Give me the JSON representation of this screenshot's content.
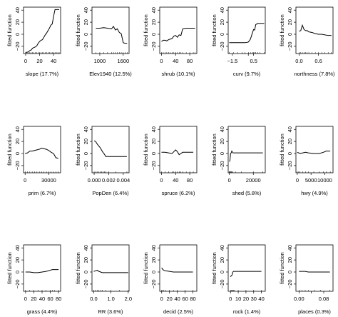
{
  "chart_data": [
    {
      "type": "line",
      "title": "",
      "xlabel": "slope (17.7%)",
      "ylabel": "fitted function",
      "xlim": [
        -3,
        50
      ],
      "ylim": [
        -32,
        45
      ],
      "xticks": [
        0,
        20,
        40
      ],
      "yticks": [
        -20,
        0,
        20,
        40
      ],
      "x": [
        0,
        2,
        4,
        6,
        8,
        10,
        12,
        14,
        16,
        18,
        20,
        22,
        24,
        26,
        28,
        30,
        32,
        34,
        36,
        38,
        40,
        42,
        44,
        46,
        48
      ],
      "y": [
        -30,
        -30,
        -29,
        -27,
        -26,
        -23,
        -22,
        -21,
        -19,
        -15,
        -12,
        -10,
        -9,
        -5,
        -1,
        2,
        6,
        10,
        15,
        17,
        30,
        41,
        41,
        41,
        41
      ]
    },
    {
      "type": "line",
      "title": "",
      "xlabel": "Elev1940 (12.5%)",
      "ylabel": "fitted function",
      "xlim": [
        800,
        1750
      ],
      "ylim": [
        -32,
        45
      ],
      "xticks": [
        1000,
        1600
      ],
      "yticks": [
        -20,
        0,
        20,
        40
      ],
      "x": [
        900,
        1000,
        1100,
        1200,
        1300,
        1350,
        1400,
        1450,
        1500,
        1550,
        1600,
        1650,
        1700
      ],
      "y": [
        10,
        10,
        11,
        10,
        9,
        13,
        7,
        9,
        3,
        1,
        -14,
        -15,
        -15
      ]
    },
    {
      "type": "line",
      "title": "",
      "xlabel": "shrub (10.1%)",
      "ylabel": "fitted function",
      "xlim": [
        -5,
        100
      ],
      "ylim": [
        -32,
        45
      ],
      "xticks": [
        0,
        40,
        80
      ],
      "yticks": [
        -20,
        0,
        20,
        40
      ],
      "x": [
        0,
        5,
        10,
        15,
        20,
        25,
        30,
        35,
        40,
        45,
        50,
        55,
        60,
        70,
        80,
        90,
        95
      ],
      "y": [
        -12,
        -10,
        -10,
        -11,
        -9,
        -8,
        -7,
        -3,
        -2,
        -5,
        -1,
        -2,
        9,
        10,
        10,
        10,
        10
      ]
    },
    {
      "type": "line",
      "title": "",
      "xlabel": "curv (9.7%)",
      "ylabel": "fitted function",
      "xlim": [
        -1.9,
        1.6
      ],
      "ylim": [
        -32,
        45
      ],
      "xticks": [
        -1.5,
        0.5
      ],
      "xticklabels": [
        "-1.5",
        "0.5"
      ],
      "extra_tick": 0,
      "yticks": [
        -20,
        0,
        20,
        40
      ],
      "x": [
        -1.8,
        -1.4,
        -1.0,
        -0.6,
        -0.3,
        0.0,
        0.2,
        0.4,
        0.5,
        0.6,
        0.7,
        0.9,
        1.1,
        1.5
      ],
      "y": [
        -14,
        -14,
        -14,
        -14,
        -14,
        -13,
        -8,
        3,
        8,
        7,
        16,
        18,
        18,
        18
      ]
    },
    {
      "type": "line",
      "title": "",
      "xlabel": "northness (7.8%)",
      "ylabel": "fitted function",
      "xlim": [
        -0.1,
        1.05
      ],
      "ylim": [
        -32,
        45
      ],
      "xticks": [
        0.0,
        0.6
      ],
      "xticklabels": [
        "0.0",
        "0.6"
      ],
      "yticks": [
        -20,
        0,
        20,
        40
      ],
      "x": [
        0.0,
        0.05,
        0.1,
        0.15,
        0.2,
        0.25,
        0.3,
        0.4,
        0.5,
        0.6,
        0.7,
        0.8,
        0.9,
        1.0
      ],
      "y": [
        5,
        6,
        15,
        8,
        6,
        6,
        4,
        3,
        1,
        0,
        0,
        -1,
        -2,
        -2
      ]
    },
    {
      "type": "line",
      "title": "",
      "xlabel": "prim (6.7%)",
      "ylabel": "fitted function",
      "xlim": [
        -2000,
        45000
      ],
      "ylim": [
        -32,
        45
      ],
      "xticks": [
        0,
        30000
      ],
      "yticks": [
        -20,
        0,
        20,
        40
      ],
      "x": [
        0,
        3000,
        6000,
        9000,
        12000,
        15000,
        18000,
        21000,
        24000,
        27000,
        30000,
        33000,
        36000,
        39000,
        42000
      ],
      "y": [
        0,
        1,
        4,
        4,
        5,
        6,
        7,
        9,
        8,
        7,
        5,
        2,
        0,
        -7,
        -8
      ]
    },
    {
      "type": "line",
      "title": "",
      "xlabel": "PopDen (6.4%)",
      "ylabel": "fitted function",
      "xlim": [
        -0.0003,
        0.0048
      ],
      "ylim": [
        -32,
        45
      ],
      "xticks": [
        0.0,
        0.002,
        0.004
      ],
      "xticklabels": [
        "0.000",
        "0.002",
        "0.004"
      ],
      "yticks": [
        -20,
        0,
        20,
        40
      ],
      "x": [
        0.0,
        0.0002,
        0.0004,
        0.0006,
        0.0008,
        0.001,
        0.0012,
        0.0014,
        0.0016,
        0.002,
        0.003,
        0.0045
      ],
      "y": [
        21,
        20,
        16,
        13,
        10,
        6,
        2,
        -1,
        -5,
        -5,
        -5,
        -5
      ]
    },
    {
      "type": "line",
      "title": "",
      "xlabel": "spruce (6.2%)",
      "ylabel": "fitted function",
      "xlim": [
        -5,
        100
      ],
      "ylim": [
        -32,
        45
      ],
      "xticks": [
        0,
        40,
        80
      ],
      "yticks": [
        -20,
        0,
        20,
        40
      ],
      "x": [
        0,
        10,
        20,
        30,
        35,
        40,
        45,
        50,
        55,
        60,
        70,
        80,
        90
      ],
      "y": [
        2,
        2,
        1,
        0,
        3,
        6,
        3,
        -2,
        0,
        2,
        2,
        2,
        2
      ]
    },
    {
      "type": "line",
      "title": "",
      "xlabel": "shed (5.8%)",
      "ylabel": "fitted function",
      "xlim": [
        -1000,
        30000
      ],
      "ylim": [
        -32,
        45
      ],
      "xticks": [
        0,
        20000
      ],
      "yticks": [
        -20,
        0,
        20,
        40
      ],
      "x": [
        0,
        300,
        600,
        1000,
        1500,
        2000,
        3000,
        5000,
        10000,
        20000,
        28000
      ],
      "y": [
        -13,
        -13,
        -9,
        0,
        1,
        4,
        1,
        1,
        1,
        1,
        1
      ]
    },
    {
      "type": "line",
      "title": "",
      "xlabel": "hwy (4.9%)",
      "ylabel": "fitted function",
      "xlim": [
        -500,
        13000
      ],
      "ylim": [
        -32,
        45
      ],
      "xticks": [
        0,
        5000,
        10000
      ],
      "yticks": [
        -20,
        0,
        20,
        40
      ],
      "x": [
        0,
        500,
        1000,
        2000,
        3000,
        4000,
        6000,
        8000,
        9500,
        10500,
        12000
      ],
      "y": [
        2,
        1,
        0,
        1,
        2,
        1,
        0,
        0,
        2,
        4,
        4
      ]
    },
    {
      "type": "line",
      "title": "",
      "xlabel": "grass (4.4%)",
      "ylabel": "fitted function",
      "xlim": [
        -5,
        85
      ],
      "ylim": [
        -32,
        45
      ],
      "xticks": [
        0,
        20,
        40,
        60,
        80
      ],
      "yticks": [
        -20,
        0,
        20,
        40
      ],
      "x": [
        0,
        10,
        20,
        30,
        40,
        50,
        60,
        65,
        70,
        80
      ],
      "y": [
        0,
        0,
        -1,
        -1,
        0,
        1,
        3,
        4,
        4,
        4
      ]
    },
    {
      "type": "line",
      "title": "",
      "xlabel": "RR (3.6%)",
      "ylabel": "fitted function",
      "xlim": [
        -0.1,
        2.05
      ],
      "ylim": [
        -32,
        45
      ],
      "xticks": [
        0.0,
        1.0,
        2.0
      ],
      "xticklabels": [
        "0.0",
        "1.0",
        "2.0"
      ],
      "yticks": [
        -20,
        0,
        20,
        40
      ],
      "x": [
        0.0,
        0.1,
        0.2,
        0.3,
        0.4,
        0.5,
        0.7,
        1.0,
        1.5,
        2.0
      ],
      "y": [
        1,
        2,
        3,
        1,
        0,
        -1,
        -1,
        -1,
        -1,
        -1
      ]
    },
    {
      "type": "line",
      "title": "",
      "xlabel": "decid (2.5%)",
      "ylabel": "fitted function",
      "xlim": [
        -5,
        90
      ],
      "ylim": [
        -32,
        45
      ],
      "xticks": [
        0,
        20,
        40,
        60,
        80
      ],
      "yticks": [
        -20,
        0,
        20,
        40
      ],
      "x": [
        0,
        2,
        5,
        10,
        20,
        30,
        40,
        60,
        80
      ],
      "y": [
        7,
        5,
        3,
        2,
        1,
        0,
        0,
        0,
        0
      ]
    },
    {
      "type": "line",
      "title": "",
      "xlabel": "rock (1.4%)",
      "ylabel": "fitted function",
      "xlim": [
        -3,
        45
      ],
      "ylim": [
        -32,
        45
      ],
      "xticks": [
        0,
        10,
        20,
        30,
        40
      ],
      "yticks": [
        -20,
        0,
        20,
        40
      ],
      "x": [
        0,
        1,
        2,
        3,
        4,
        5,
        10,
        20,
        30,
        40
      ],
      "y": [
        -8,
        -6,
        -5,
        0,
        1,
        1,
        1,
        1,
        1,
        1
      ]
    },
    {
      "type": "line",
      "title": "",
      "xlabel": "places (0.3%)",
      "ylabel": "fitted function",
      "xlim": [
        -0.01,
        0.11
      ],
      "ylim": [
        -32,
        45
      ],
      "xticks": [
        0.0,
        0.08
      ],
      "xticklabels": [
        "0.00",
        "0.08"
      ],
      "extra_tick": 0.04,
      "yticks": [
        -20,
        0,
        20,
        40
      ],
      "x": [
        0.0,
        0.01,
        0.02,
        0.03,
        0.05,
        0.07,
        0.1
      ],
      "y": [
        1,
        1,
        1,
        0,
        0,
        0,
        0
      ]
    }
  ]
}
